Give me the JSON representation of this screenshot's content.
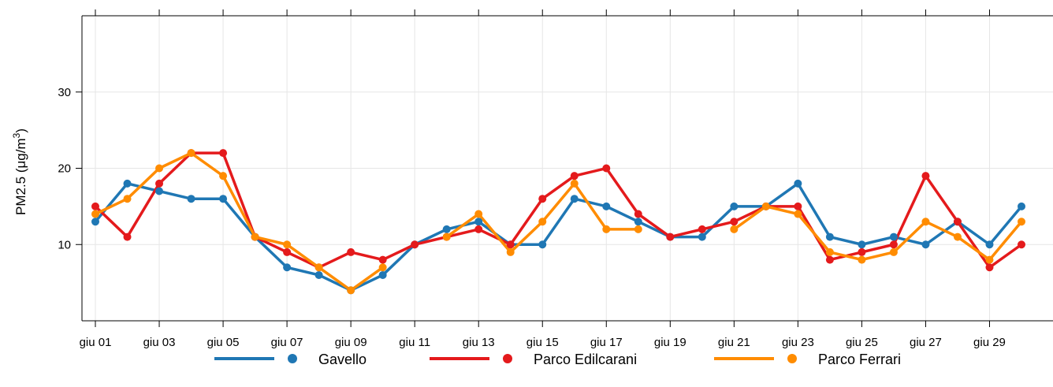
{
  "chart_data": {
    "type": "line",
    "ylabel": "PM2.5 (μg/m³)",
    "ylabel_parts": {
      "text": "PM2.5 (μg/m",
      "sup": "3",
      "close": ")"
    },
    "ylim": [
      0,
      40
    ],
    "yticks": [
      10,
      20,
      30
    ],
    "xlim": [
      0.6,
      30.5
    ],
    "x": [
      1,
      2,
      3,
      4,
      5,
      6,
      7,
      8,
      9,
      10,
      11,
      12,
      13,
      14,
      15,
      16,
      17,
      18,
      19,
      20,
      21,
      22,
      23,
      24,
      25,
      26,
      27,
      28,
      29,
      30
    ],
    "xticks": [
      {
        "day": 1,
        "label": "giu 01"
      },
      {
        "day": 3,
        "label": "giu 03"
      },
      {
        "day": 5,
        "label": "giu 05"
      },
      {
        "day": 7,
        "label": "giu 07"
      },
      {
        "day": 9,
        "label": "giu 09"
      },
      {
        "day": 11,
        "label": "giu 11"
      },
      {
        "day": 13,
        "label": "giu 13"
      },
      {
        "day": 15,
        "label": "giu 15"
      },
      {
        "day": 17,
        "label": "giu 17"
      },
      {
        "day": 19,
        "label": "giu 19"
      },
      {
        "day": 21,
        "label": "giu 21"
      },
      {
        "day": 23,
        "label": "giu 23"
      },
      {
        "day": 25,
        "label": "giu 25"
      },
      {
        "day": 27,
        "label": "giu 27"
      },
      {
        "day": 29,
        "label": "giu 29"
      }
    ],
    "grid": true,
    "legend_position": "bottom",
    "series": [
      {
        "name": "Gavello",
        "color": "#1f77b4",
        "values": [
          13,
          18,
          17,
          16,
          16,
          11,
          7,
          6,
          4,
          6,
          10,
          12,
          13,
          10,
          10,
          16,
          15,
          13,
          11,
          11,
          15,
          15,
          18,
          11,
          10,
          11,
          10,
          13,
          10,
          15
        ]
      },
      {
        "name": "Parco Edilcarani",
        "color": "#e41a1c",
        "values": [
          15,
          11,
          18,
          22,
          22,
          11,
          9,
          7,
          9,
          8,
          10,
          11,
          12,
          10,
          16,
          19,
          20,
          14,
          11,
          12,
          13,
          15,
          15,
          8,
          9,
          10,
          19,
          13,
          7,
          10
        ]
      },
      {
        "name": "Parco Ferrari",
        "color": "#ff8c00",
        "values": [
          14,
          16,
          20,
          22,
          19,
          11,
          10,
          7,
          4,
          7,
          null,
          11,
          14,
          9,
          13,
          18,
          12,
          12,
          null,
          null,
          12,
          15,
          14,
          9,
          8,
          9,
          13,
          11,
          8,
          13
        ]
      }
    ]
  }
}
